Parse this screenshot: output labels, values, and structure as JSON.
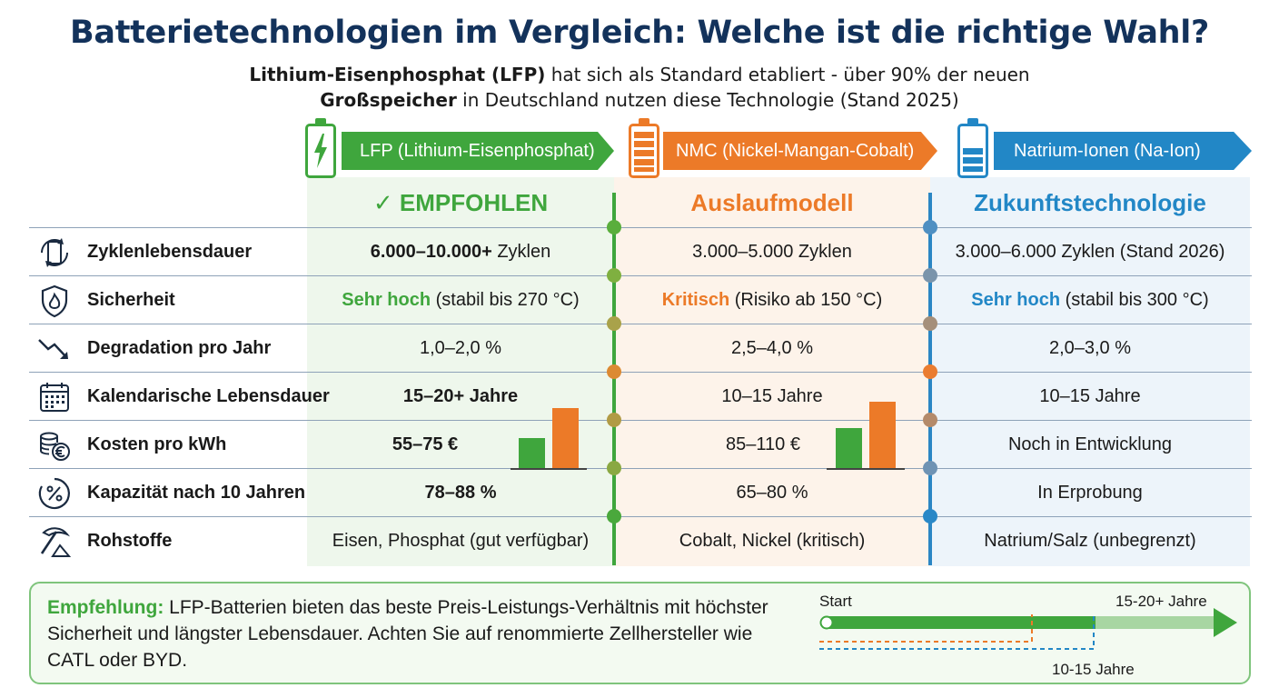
{
  "header": {
    "title": "Batterietechnologien im Vergleich: Welche ist die richtige Wahl?",
    "subtitle_bold_1": "Lithium-Eisenphosphat (LFP)",
    "subtitle_text_1": " hat sich als Standard etabliert - über 90% der neuen",
    "subtitle_bold_2": "Großspeicher",
    "subtitle_text_2": " in Deutschland nutzen diese Technologie (Stand 2025)"
  },
  "columns": [
    {
      "name": "LFP (Lithium-Eisenphosphat)",
      "status": "✓ EMPFOHLEN",
      "color": "#3fa63d",
      "icon": "battery-bolt-icon"
    },
    {
      "name": "NMC (Nickel-Mangan-Cobalt)",
      "status": "Auslaufmodell",
      "color": "#ec7a28",
      "icon": "battery-full-icon"
    },
    {
      "name": "Natrium-Ionen (Na-Ion)",
      "status": "Zukunftstechnologie",
      "color": "#2287c6",
      "icon": "battery-level-icon"
    }
  ],
  "rows": [
    {
      "label": "Zyklenlebensdauer",
      "icon": "cycle-phone-icon",
      "lfp_strong": "6.000–10.000+",
      "lfp_rest": " Zyklen",
      "nmc": "3.000–5.000 Zyklen",
      "na": "3.000–6.000 Zyklen (Stand 2026)"
    },
    {
      "label": "Sicherheit",
      "icon": "shield-flame-icon",
      "lfp_strong": "Sehr hoch",
      "lfp_rest": " (stabil bis 270 °C)",
      "nmc_strong": "Kritisch",
      "nmc_rest": " (Risiko ab 150 °C)",
      "na_strong": "Sehr hoch",
      "na_rest": " (stabil bis 300 °C)"
    },
    {
      "label": "Degradation pro Jahr",
      "icon": "trend-down-icon",
      "lfp": "1,0–2,0 %",
      "nmc": "2,5–4,0 %",
      "na": "2,0–3,0 %"
    },
    {
      "label": "Kalendarische Lebensdauer",
      "icon": "calendar-icon",
      "lfp_strong": "15–20+ Jahre",
      "nmc": "10–15 Jahre",
      "na": "10–15 Jahre"
    },
    {
      "label": "Kosten pro kWh",
      "icon": "coins-euro-icon",
      "lfp_strong": "55–75 €",
      "nmc": "85–110 €",
      "na": "Noch in Entwicklung"
    },
    {
      "label": "Kapazität nach 10 Jahren",
      "icon": "percent-gauge-icon",
      "lfp_strong": "78–88 %",
      "nmc": "65–80 %",
      "na": "In Erprobung"
    },
    {
      "label": "Rohstoffe",
      "icon": "pickaxe-icon",
      "lfp": "Eisen, Phosphat (gut verfügbar)",
      "nmc": "Cobalt, Nickel (kritisch)",
      "na": "Natrium/Salz (unbegrenzt)"
    }
  ],
  "recommendation": {
    "lead": "Empfehlung:",
    "text": " LFP-Batterien bieten das beste Preis-Leistungs-Verhältnis mit höchster Sicherheit und längster Lebensdauer. Achten Sie auf renommierte Zellhersteller wie CATL oder BYD."
  },
  "timeline": {
    "start": "Start",
    "long": "15-20+ Jahre",
    "short": "10-15 Jahre"
  }
}
